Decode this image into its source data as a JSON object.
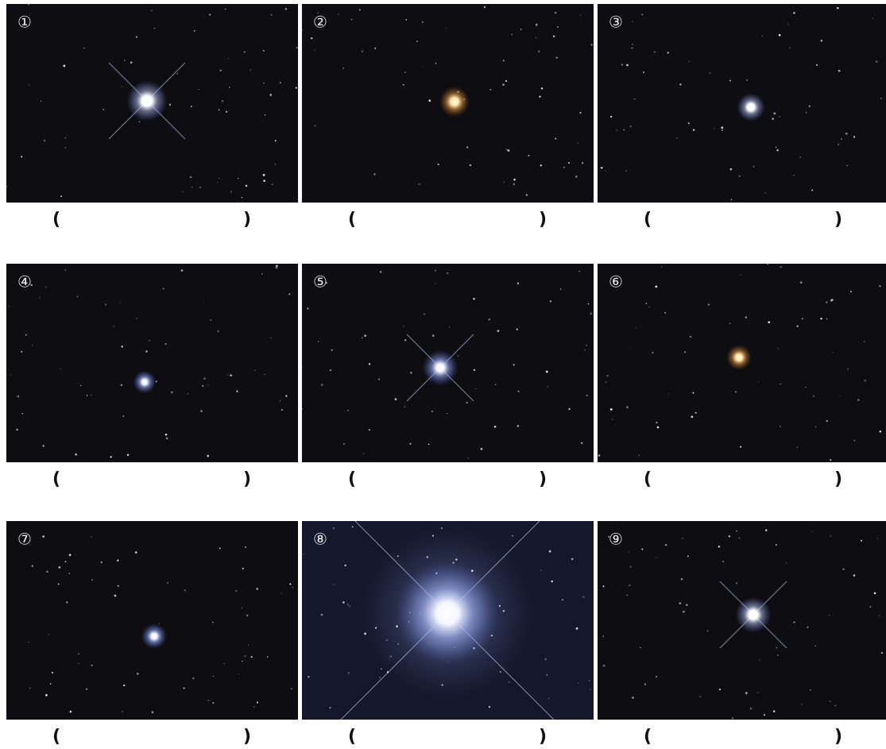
{
  "panels": [
    {
      "label": "①",
      "open": "(",
      "close": ")"
    },
    {
      "label": "②",
      "open": "(",
      "close": ")"
    },
    {
      "label": "③",
      "open": "(",
      "close": ")"
    },
    {
      "label": "④",
      "open": "(",
      "close": ")"
    },
    {
      "label": "⑤",
      "open": "(",
      "close": ")"
    },
    {
      "label": "⑥",
      "open": "(",
      "close": ")"
    },
    {
      "label": "⑦",
      "open": "(",
      "close": ")"
    },
    {
      "label": "⑧",
      "open": "(",
      "close": ")"
    },
    {
      "label": "⑨",
      "open": "(",
      "close": ")"
    }
  ]
}
